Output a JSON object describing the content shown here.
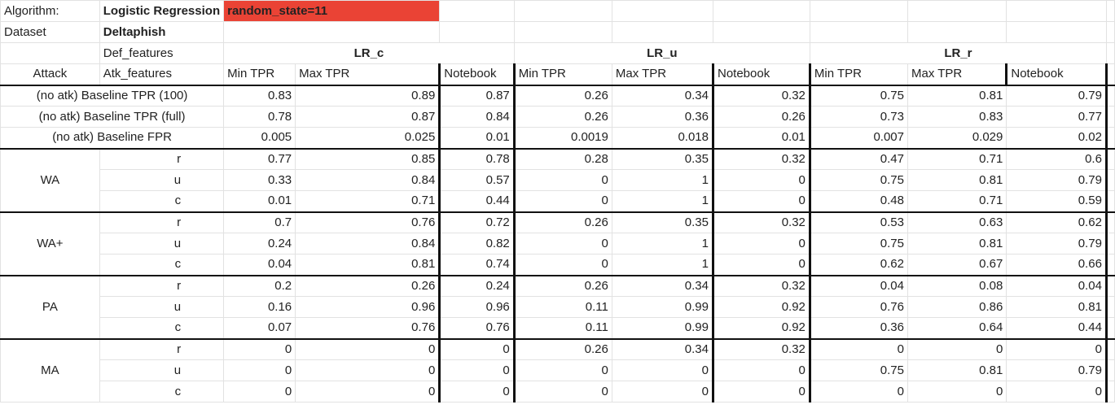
{
  "meta": {
    "algorithm_label": "Algorithm:",
    "algorithm_value": "Logistic Regression",
    "random_state": "random_state=11",
    "dataset_label": "Dataset",
    "dataset_value": "Deltaphish",
    "def_features_label": "Def_features",
    "group_labels": [
      "LR_c",
      "LR_u",
      "LR_r"
    ],
    "attack_label": "Attack",
    "atk_features_label": "Atk_features",
    "col_labels": [
      "Min TPR",
      "Max TPR",
      "Notebook"
    ]
  },
  "baseline_rows": [
    {
      "label": "(no atk) Baseline TPR (100)",
      "values": [
        "0.83",
        "0.89",
        "0.87",
        "0.26",
        "0.34",
        "0.32",
        "0.75",
        "0.81",
        "0.79"
      ]
    },
    {
      "label": "(no atk) Baseline TPR (full)",
      "values": [
        "0.78",
        "0.87",
        "0.84",
        "0.26",
        "0.36",
        "0.26",
        "0.73",
        "0.83",
        "0.77"
      ]
    },
    {
      "label": "(no atk) Baseline FPR",
      "values": [
        "0.005",
        "0.025",
        "0.01",
        "0.0019",
        "0.018",
        "0.01",
        "0.007",
        "0.029",
        "0.02"
      ]
    }
  ],
  "attacks": [
    {
      "name": "WA",
      "rows": [
        {
          "feat": "r",
          "values": [
            "0.77",
            "0.85",
            "0.78",
            "0.28",
            "0.35",
            "0.32",
            "0.47",
            "0.71",
            "0.6"
          ]
        },
        {
          "feat": "u",
          "values": [
            "0.33",
            "0.84",
            "0.57",
            "0",
            "1",
            "0",
            "0.75",
            "0.81",
            "0.79"
          ]
        },
        {
          "feat": "c",
          "values": [
            "0.01",
            "0.71",
            "0.44",
            "0",
            "1",
            "0",
            "0.48",
            "0.71",
            "0.59"
          ]
        }
      ]
    },
    {
      "name": "WA+",
      "rows": [
        {
          "feat": "r",
          "values": [
            "0.7",
            "0.76",
            "0.72",
            "0.26",
            "0.35",
            "0.32",
            "0.53",
            "0.63",
            "0.62"
          ]
        },
        {
          "feat": "u",
          "values": [
            "0.24",
            "0.84",
            "0.82",
            "0",
            "1",
            "0",
            "0.75",
            "0.81",
            "0.79"
          ]
        },
        {
          "feat": "c",
          "values": [
            "0.04",
            "0.81",
            "0.74",
            "0",
            "1",
            "0",
            "0.62",
            "0.67",
            "0.66"
          ]
        }
      ]
    },
    {
      "name": "PA",
      "rows": [
        {
          "feat": "r",
          "values": [
            "0.2",
            "0.26",
            "0.24",
            "0.26",
            "0.34",
            "0.32",
            "0.04",
            "0.08",
            "0.04"
          ]
        },
        {
          "feat": "u",
          "values": [
            "0.16",
            "0.96",
            "0.96",
            "0.11",
            "0.99",
            "0.92",
            "0.76",
            "0.86",
            "0.81"
          ]
        },
        {
          "feat": "c",
          "values": [
            "0.07",
            "0.76",
            "0.76",
            "0.11",
            "0.99",
            "0.92",
            "0.36",
            "0.64",
            "0.44"
          ]
        }
      ]
    },
    {
      "name": "MA",
      "rows": [
        {
          "feat": "r",
          "values": [
            "0",
            "0",
            "0",
            "0.26",
            "0.34",
            "0.32",
            "0",
            "0",
            "0"
          ]
        },
        {
          "feat": "u",
          "values": [
            "0",
            "0",
            "0",
            "0",
            "0",
            "0",
            "0.75",
            "0.81",
            "0.79"
          ]
        },
        {
          "feat": "c",
          "values": [
            "0",
            "0",
            "0",
            "0",
            "0",
            "0",
            "0",
            "0",
            "0"
          ]
        }
      ]
    }
  ]
}
